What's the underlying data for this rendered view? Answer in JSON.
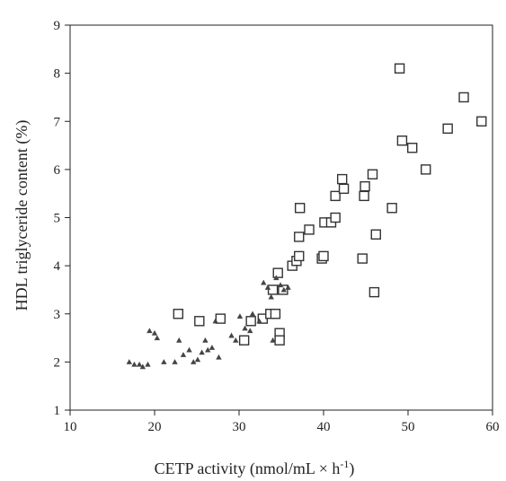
{
  "chart_data": {
    "type": "scatter",
    "xlabel": "CETP activity (nmol/mL × h",
    "xlabel_sup": "-1",
    "xlabel_close": ")",
    "ylabel": "HDL triglyceride content (%)",
    "xlim": [
      10,
      60
    ],
    "ylim": [
      1,
      9
    ],
    "x_ticks": [
      10,
      20,
      30,
      40,
      50,
      60
    ],
    "y_ticks": [
      1,
      2,
      3,
      4,
      5,
      6,
      7,
      8,
      9
    ],
    "grid": false,
    "colors": {
      "marker": "#333333",
      "axis": "#222222"
    },
    "series": [
      {
        "marker": "square",
        "points": [
          [
            22.8,
            3.0
          ],
          [
            25.3,
            2.85
          ],
          [
            27.8,
            2.9
          ],
          [
            30.6,
            2.45
          ],
          [
            31.4,
            2.85
          ],
          [
            32.8,
            2.9
          ],
          [
            33.7,
            3.0
          ],
          [
            34.0,
            3.5
          ],
          [
            34.3,
            3.0
          ],
          [
            34.8,
            2.6
          ],
          [
            34.8,
            2.45
          ],
          [
            34.6,
            3.85
          ],
          [
            35.2,
            3.5
          ],
          [
            36.3,
            4.0
          ],
          [
            36.8,
            4.1
          ],
          [
            37.1,
            4.2
          ],
          [
            37.1,
            4.6
          ],
          [
            37.2,
            5.2
          ],
          [
            38.3,
            4.75
          ],
          [
            39.8,
            4.15
          ],
          [
            40.0,
            4.2
          ],
          [
            40.1,
            4.9
          ],
          [
            40.9,
            4.9
          ],
          [
            41.4,
            5.0
          ],
          [
            41.4,
            5.45
          ],
          [
            42.2,
            5.8
          ],
          [
            42.4,
            5.6
          ],
          [
            44.6,
            4.15
          ],
          [
            44.8,
            5.45
          ],
          [
            44.9,
            5.65
          ],
          [
            45.8,
            5.9
          ],
          [
            46.0,
            3.45
          ],
          [
            46.2,
            4.65
          ],
          [
            48.1,
            5.2
          ],
          [
            49.0,
            8.1
          ],
          [
            49.3,
            6.6
          ],
          [
            50.5,
            6.45
          ],
          [
            52.1,
            6.0
          ],
          [
            54.7,
            6.85
          ],
          [
            56.6,
            7.5
          ],
          [
            58.7,
            7.0
          ]
        ]
      },
      {
        "marker": "triangle",
        "points": [
          [
            17.0,
            2.0
          ],
          [
            17.6,
            1.95
          ],
          [
            18.2,
            1.95
          ],
          [
            18.6,
            1.9
          ],
          [
            19.2,
            1.95
          ],
          [
            19.4,
            2.65
          ],
          [
            20.0,
            2.6
          ],
          [
            20.3,
            2.5
          ],
          [
            21.1,
            2.0
          ],
          [
            22.4,
            2.0
          ],
          [
            22.9,
            2.45
          ],
          [
            23.4,
            2.15
          ],
          [
            24.1,
            2.25
          ],
          [
            24.6,
            2.0
          ],
          [
            25.1,
            2.05
          ],
          [
            25.6,
            2.2
          ],
          [
            26.0,
            2.45
          ],
          [
            26.3,
            2.25
          ],
          [
            26.8,
            2.3
          ],
          [
            27.2,
            2.85
          ],
          [
            27.6,
            2.1
          ],
          [
            29.1,
            2.55
          ],
          [
            29.6,
            2.45
          ],
          [
            30.1,
            2.95
          ],
          [
            30.7,
            2.7
          ],
          [
            31.3,
            2.65
          ],
          [
            31.6,
            3.0
          ],
          [
            32.4,
            2.85
          ],
          [
            32.9,
            3.65
          ],
          [
            33.4,
            3.55
          ],
          [
            33.8,
            3.35
          ],
          [
            34.0,
            2.45
          ],
          [
            34.4,
            3.75
          ],
          [
            34.9,
            3.6
          ],
          [
            35.3,
            3.5
          ],
          [
            35.8,
            3.55
          ]
        ]
      }
    ]
  }
}
